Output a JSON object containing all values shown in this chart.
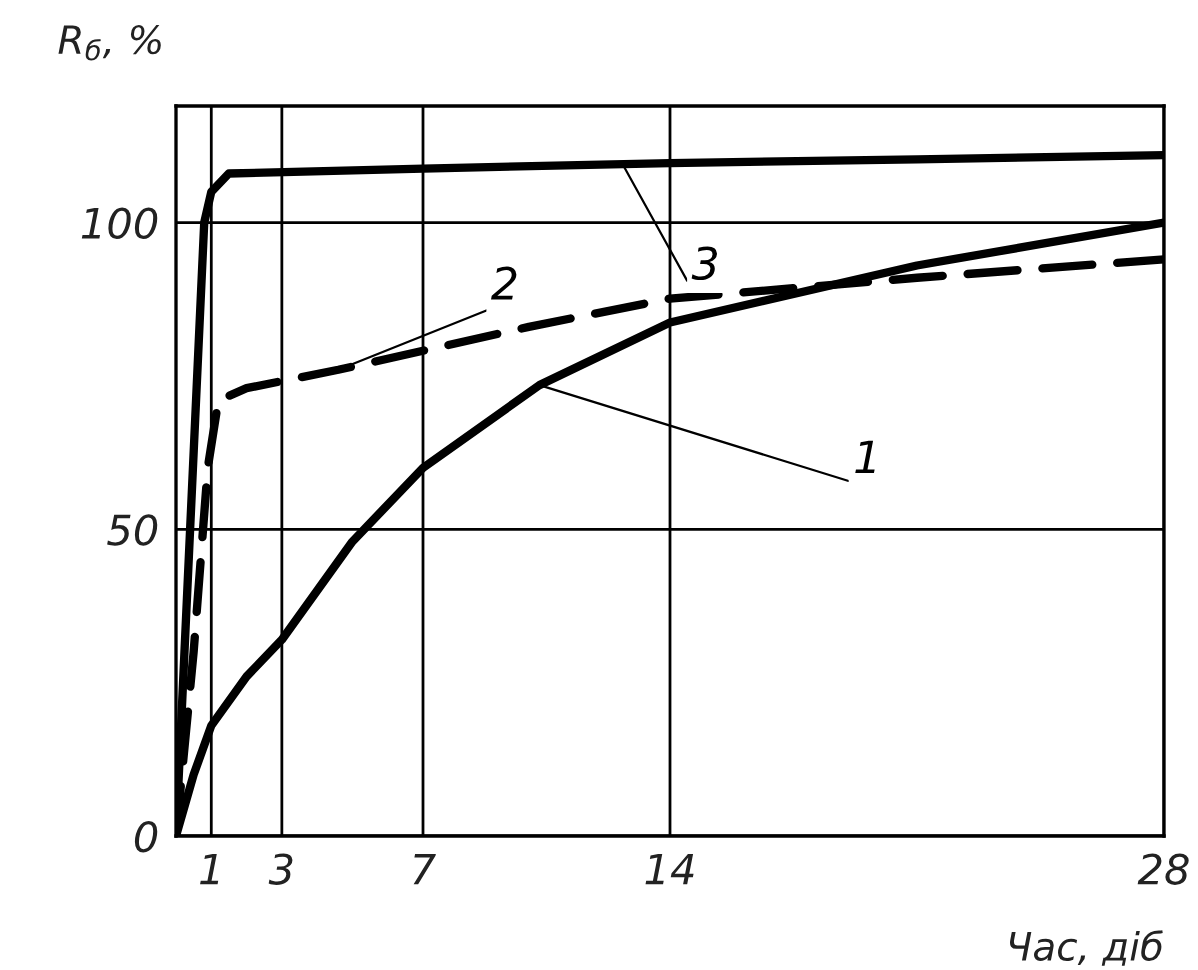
{
  "chart_data": {
    "type": "line",
    "xlabel": "Час, діб",
    "ylabel": "R$_{б}$, %",
    "xlim": [
      0,
      28
    ],
    "ylim": [
      0,
      119
    ],
    "xticks": [
      1,
      3,
      7,
      14,
      28
    ],
    "yticks": [
      0,
      50,
      100
    ],
    "grid": true,
    "marker": "none",
    "legend": false,
    "series": [
      {
        "color": "#000000",
        "line_style": "solid",
        "x": [
          0,
          0.5,
          1,
          2,
          3,
          5,
          7,
          10.3,
          14,
          21,
          28
        ],
        "values": [
          0,
          10,
          18,
          26,
          32,
          48,
          60,
          73.5,
          83.7,
          93,
          100
        ]
      },
      {
        "color": "#000000",
        "line_style": "dashed",
        "x": [
          0,
          0.5,
          0.9,
          1.2,
          2,
          4.6,
          10,
          14,
          21,
          28
        ],
        "values": [
          0,
          30,
          60,
          71,
          73,
          76,
          83,
          87.6,
          91,
          94
        ]
      },
      {
        "color": "#000000",
        "line_style": "solid",
        "x": [
          0,
          0.4,
          0.8,
          1.0,
          1.5,
          7,
          14,
          21,
          28
        ],
        "values": [
          0,
          50,
          100,
          105,
          108,
          108.8,
          109.7,
          110.3,
          111
        ]
      }
    ],
    "annotations": [
      {
        "text": "1",
        "x": 10.3,
        "y": 73.5
      },
      {
        "text": "2",
        "x": 4.6,
        "y": 76
      },
      {
        "text": "3",
        "x": 12.65,
        "y": 109.6
      }
    ]
  }
}
